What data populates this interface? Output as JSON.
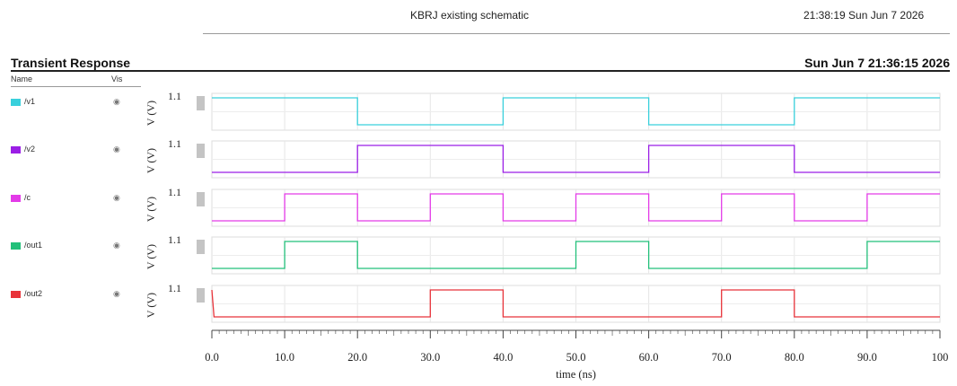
{
  "header": {
    "title": "KBRJ existing schematic",
    "timestamp": "21:38:19  Sun Jun 7 2026"
  },
  "section": {
    "title": "Transient Response",
    "date": "Sun Jun 7 21:36:15 2026"
  },
  "legend": {
    "name_header": "Name",
    "vis_header": "Vis"
  },
  "chart_data": {
    "type": "line",
    "xlabel": "time (ns)",
    "xlim": [
      0,
      100
    ],
    "x_ticks": [
      "0.0",
      "10.0",
      "20.0",
      "30.0",
      "40.0",
      "50.0",
      "60.0",
      "70.0",
      "80.0",
      "90.0",
      "100"
    ],
    "grid": true,
    "series": [
      {
        "name": "/v1",
        "color": "#39d0dc",
        "ylabel": "V (V)",
        "ytick": "1.1",
        "points": [
          [
            0,
            1.1
          ],
          [
            20,
            1.1
          ],
          [
            20,
            0
          ],
          [
            40,
            0
          ],
          [
            40,
            1.1
          ],
          [
            60,
            1.1
          ],
          [
            60,
            0
          ],
          [
            80,
            0
          ],
          [
            80,
            1.1
          ],
          [
            100,
            1.1
          ]
        ]
      },
      {
        "name": "/v2",
        "color": "#9b1fe6",
        "ylabel": "V (V)",
        "ytick": "1.1",
        "points": [
          [
            0,
            0
          ],
          [
            20,
            0
          ],
          [
            20,
            1.1
          ],
          [
            40,
            1.1
          ],
          [
            40,
            0
          ],
          [
            60,
            0
          ],
          [
            60,
            1.1
          ],
          [
            80,
            1.1
          ],
          [
            80,
            0
          ],
          [
            100,
            0
          ]
        ]
      },
      {
        "name": "/c",
        "color": "#e33be8",
        "ylabel": "V (V)",
        "ytick": "1.1",
        "points": [
          [
            0,
            0
          ],
          [
            10,
            0
          ],
          [
            10,
            1.1
          ],
          [
            20,
            1.1
          ],
          [
            20,
            0
          ],
          [
            30,
            0
          ],
          [
            30,
            1.1
          ],
          [
            40,
            1.1
          ],
          [
            40,
            0
          ],
          [
            50,
            0
          ],
          [
            50,
            1.1
          ],
          [
            60,
            1.1
          ],
          [
            60,
            0
          ],
          [
            70,
            0
          ],
          [
            70,
            1.1
          ],
          [
            80,
            1.1
          ],
          [
            80,
            0
          ],
          [
            90,
            0
          ],
          [
            90,
            1.1
          ],
          [
            100,
            1.1
          ]
        ]
      },
      {
        "name": "/out1",
        "color": "#22c07a",
        "ylabel": "V (V)",
        "ytick": "1.1",
        "points": [
          [
            0,
            0
          ],
          [
            10,
            0
          ],
          [
            10,
            1.1
          ],
          [
            20,
            1.1
          ],
          [
            20,
            0
          ],
          [
            50,
            0
          ],
          [
            50,
            1.1
          ],
          [
            60,
            1.1
          ],
          [
            60,
            0
          ],
          [
            90,
            0
          ],
          [
            90,
            1.1
          ],
          [
            100,
            1.1
          ]
        ]
      },
      {
        "name": "/out2",
        "color": "#e8333a",
        "ylabel": "V (V)",
        "ytick": "1.1",
        "points": [
          [
            0,
            1.1
          ],
          [
            0.3,
            0
          ],
          [
            30,
            0
          ],
          [
            30,
            1.1
          ],
          [
            40,
            1.1
          ],
          [
            40,
            0
          ],
          [
            70,
            0
          ],
          [
            70,
            1.1
          ],
          [
            80,
            1.1
          ],
          [
            80,
            0
          ],
          [
            100,
            0
          ]
        ]
      }
    ]
  }
}
